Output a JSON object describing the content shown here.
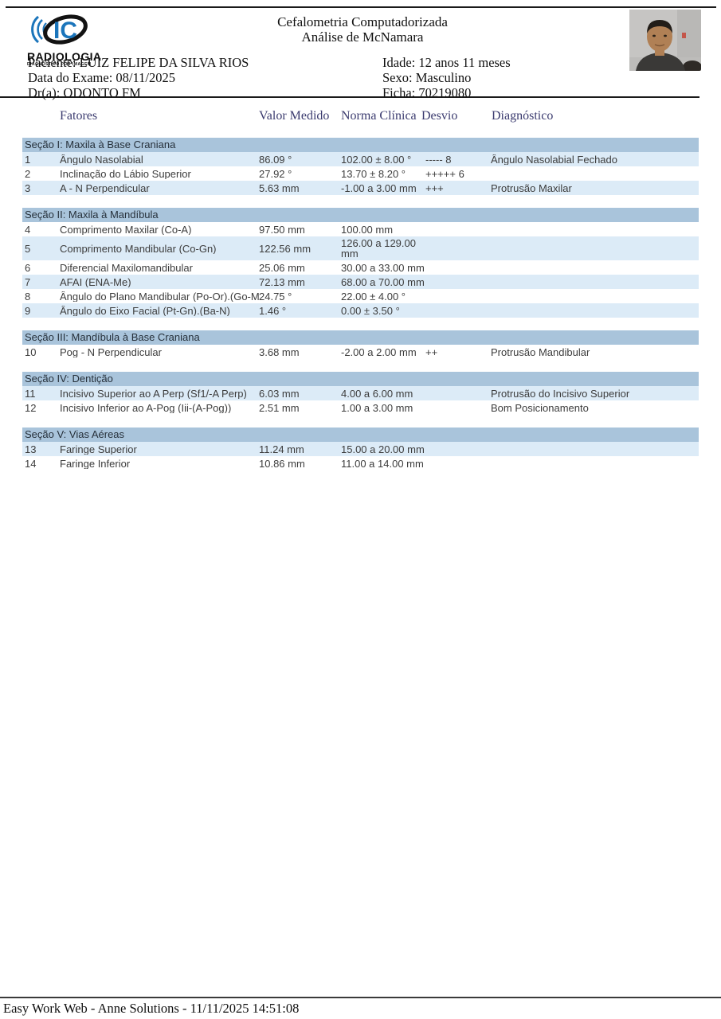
{
  "colors": {
    "section_band": "#a9c4db",
    "row_alt": "#dcebf7",
    "column_header_text": "#3b3b6f",
    "logo_blue": "#1b75bb"
  },
  "logo": {
    "monogram": "IC",
    "name": "RADIOLOGIA",
    "tagline": "DIAGNÓSTICO POR IMAGEM"
  },
  "header": {
    "title_line1": "Cefalometria Computadorizada",
    "title_line2": "Análise de McNamara"
  },
  "patient_info_left": [
    "Paciente: LUIZ FELIPE DA SILVA RIOS",
    "Data do Exame: 08/11/2025",
    "Dr(a): ODONTO FM"
  ],
  "patient_info_right": [
    "Idade: 12 anos 11 meses",
    "Sexo: Masculino",
    "Ficha: 70219080"
  ],
  "column_headers": [
    "Fatores",
    "Valor Medido",
    "Norma Clínica",
    "Desvio",
    "Diagnóstico"
  ],
  "sections": [
    {
      "title": "Seção I: Maxila à Base Craniana",
      "rows": [
        {
          "n": "1",
          "fator": "Ângulo Nasolabial",
          "valor": "86.09 °",
          "norma": "102.00 ± 8.00 °",
          "desvio": "----- 8",
          "diag": "Ângulo Nasolabial Fechado"
        },
        {
          "n": "2",
          "fator": "Inclinação do Lábio Superior",
          "valor": "27.92 °",
          "norma": "13.70 ± 8.20 °",
          "desvio": "+++++ 6",
          "diag": ""
        },
        {
          "n": "3",
          "fator": "A - N Perpendicular",
          "valor": "5.63 mm",
          "norma": "-1.00 a 3.00 mm",
          "desvio": "+++",
          "diag": "Protrusão Maxilar"
        }
      ]
    },
    {
      "title": "Seção II: Maxila à Mandíbula",
      "rows": [
        {
          "n": "4",
          "fator": "Comprimento Maxilar (Co-A)",
          "valor": "97.50 mm",
          "norma": "100.00 mm",
          "desvio": "",
          "diag": ""
        },
        {
          "n": "5",
          "fator": "Comprimento Mandibular (Co-Gn)",
          "valor": "122.56 mm",
          "norma": "126.00 a 129.00 mm",
          "desvio": "",
          "diag": ""
        },
        {
          "n": "6",
          "fator": "Diferencial Maxilomandibular",
          "valor": "25.06 mm",
          "norma": "30.00 a 33.00 mm",
          "desvio": "",
          "diag": ""
        },
        {
          "n": "7",
          "fator": "AFAI (ENA-Me)",
          "valor": "72.13 mm",
          "norma": "68.00 a 70.00 mm",
          "desvio": "",
          "diag": ""
        },
        {
          "n": "8",
          "fator": "Ângulo do Plano Mandibular (Po-Or).(Go-Me)",
          "valor": "24.75 °",
          "norma": "22.00 ± 4.00 °",
          "desvio": "",
          "diag": ""
        },
        {
          "n": "9",
          "fator": "Ângulo do Eixo Facial (Pt-Gn).(Ba-N)",
          "valor": "1.46 °",
          "norma": "0.00 ± 3.50 °",
          "desvio": "",
          "diag": ""
        }
      ]
    },
    {
      "title": "Seção III: Mandíbula à Base Craniana",
      "rows": [
        {
          "n": "10",
          "fator": "Pog - N Perpendicular",
          "valor": "3.68 mm",
          "norma": "-2.00 a 2.00 mm",
          "desvio": "++",
          "diag": "Protrusão Mandibular"
        }
      ]
    },
    {
      "title": "Seção IV: Dentição",
      "rows": [
        {
          "n": "11",
          "fator": "Incisivo Superior ao A Perp (Sf1/-A Perp)",
          "valor": "6.03 mm",
          "norma": "4.00 a 6.00 mm",
          "desvio": "",
          "diag": "Protrusão do Incisivo Superior"
        },
        {
          "n": "12",
          "fator": "Incisivo Inferior ao A-Pog (Iii-(A-Pog))",
          "valor": "2.51 mm",
          "norma": "1.00 a 3.00 mm",
          "desvio": "",
          "diag": "Bom Posicionamento"
        }
      ]
    },
    {
      "title": "Seção V: Vias Aéreas",
      "rows": [
        {
          "n": "13",
          "fator": "Faringe Superior",
          "valor": "11.24 mm",
          "norma": "15.00 a 20.00 mm",
          "desvio": "",
          "diag": ""
        },
        {
          "n": "14",
          "fator": "Faringe Inferior",
          "valor": "10.86 mm",
          "norma": "11.00 a 14.00 mm",
          "desvio": "",
          "diag": ""
        }
      ]
    }
  ],
  "footer": {
    "text": "Easy Work Web - Anne Solutions - 11/11/2025 14:51:08"
  }
}
